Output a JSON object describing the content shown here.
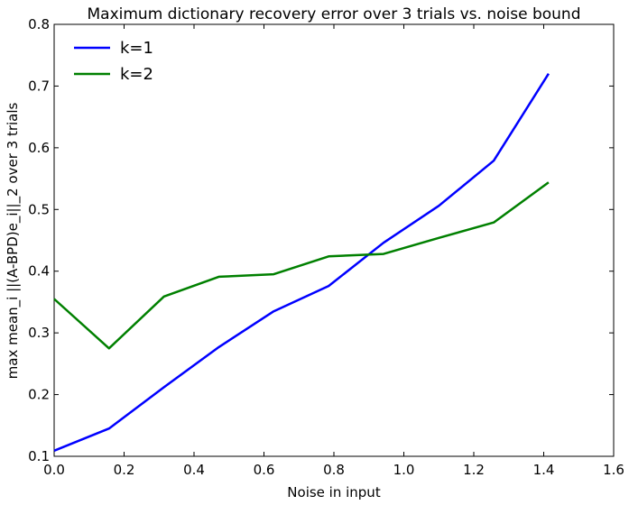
{
  "chart_data": {
    "type": "line",
    "title": "Maximum dictionary recovery error over 3 trials vs. noise bound",
    "xlabel": "Noise in input",
    "ylabel": "max mean_i ||(A-BPD)e_i||_2 over 3 trials",
    "xlim": [
      0.0,
      1.6
    ],
    "ylim": [
      0.1,
      0.8
    ],
    "xticks": [
      "0.0",
      "0.2",
      "0.4",
      "0.6",
      "0.8",
      "1.0",
      "1.2",
      "1.4",
      "1.6"
    ],
    "yticks": [
      "0.1",
      "0.2",
      "0.3",
      "0.4",
      "0.5",
      "0.6",
      "0.7",
      "0.8"
    ],
    "grid": false,
    "legend_position": "top-left",
    "series": [
      {
        "name": "k=1",
        "color": "#0000ff",
        "x": [
          0.0,
          0.157,
          0.314,
          0.471,
          0.628,
          0.785,
          0.942,
          1.1,
          1.257,
          1.414
        ],
        "y": [
          0.109,
          0.145,
          0.212,
          0.277,
          0.335,
          0.376,
          0.446,
          0.506,
          0.579,
          0.72
        ]
      },
      {
        "name": "k=2",
        "color": "#008000",
        "x": [
          0.0,
          0.157,
          0.314,
          0.471,
          0.628,
          0.785,
          0.942,
          1.1,
          1.257,
          1.414
        ],
        "y": [
          0.355,
          0.275,
          0.359,
          0.391,
          0.395,
          0.424,
          0.428,
          0.454,
          0.479,
          0.544
        ]
      }
    ]
  }
}
